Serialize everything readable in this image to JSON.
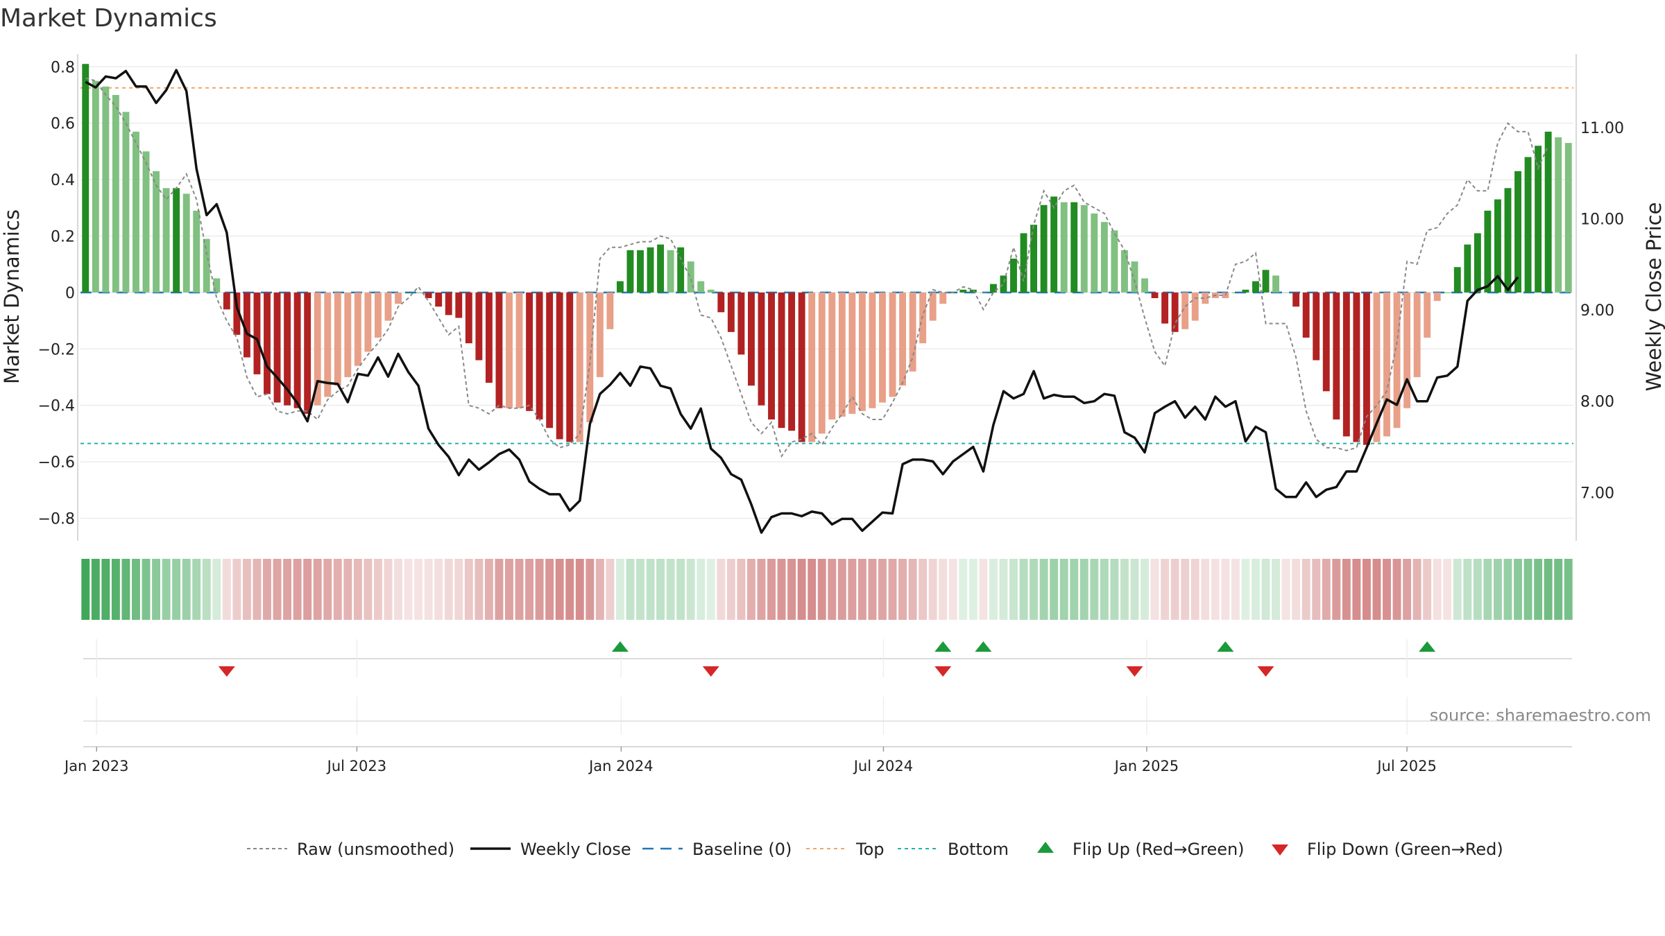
{
  "chart_data": {
    "type": "bar",
    "title": "Market Dynamics",
    "ylabel_left": "Market Dynamics",
    "ylabel_right": "Weekly Close Price",
    "source": "source: sharemaestro.com",
    "ylim_left": [
      -0.88,
      0.84
    ],
    "ylim_right": [
      6.47,
      11.79
    ],
    "yticks_left": [
      {
        "v": 0.8,
        "label": "0.8"
      },
      {
        "v": 0.6,
        "label": "0.6"
      },
      {
        "v": 0.4,
        "label": "0.4"
      },
      {
        "v": 0.2,
        "label": "0.2"
      },
      {
        "v": 0,
        "label": "0"
      },
      {
        "v": -0.2,
        "label": "−0.2"
      },
      {
        "v": -0.4,
        "label": "−0.4"
      },
      {
        "v": -0.6,
        "label": "−0.6"
      },
      {
        "v": -0.8,
        "label": "−0.8"
      }
    ],
    "yticks_right": [
      {
        "v": 11,
        "label": "11.00"
      },
      {
        "v": 10,
        "label": "10.00"
      },
      {
        "v": 9,
        "label": "9.00"
      },
      {
        "v": 8,
        "label": "8.00"
      },
      {
        "v": 7,
        "label": "7.00"
      }
    ],
    "xticks": [
      {
        "week": 1.6,
        "label": "Jan 2023"
      },
      {
        "week": 27.4,
        "label": "Jul 2023"
      },
      {
        "week": 53.6,
        "label": "Jan 2024"
      },
      {
        "week": 79.6,
        "label": "Jul 2024"
      },
      {
        "week": 105.7,
        "label": "Jan 2025"
      },
      {
        "week": 131.5,
        "label": "Jul 2025"
      }
    ],
    "top_level": 0.725,
    "bottom_level": -0.535,
    "baseline": 0,
    "histogram": [
      0.81,
      0.75,
      0.73,
      0.7,
      0.64,
      0.57,
      0.5,
      0.43,
      0.37,
      0.37,
      0.35,
      0.29,
      0.19,
      0.05,
      -0.06,
      -0.15,
      -0.23,
      -0.29,
      -0.36,
      -0.39,
      -0.4,
      -0.41,
      -0.43,
      -0.4,
      -0.37,
      -0.33,
      -0.3,
      -0.26,
      -0.21,
      -0.16,
      -0.1,
      -0.04,
      0,
      0,
      -0.02,
      -0.05,
      -0.08,
      -0.09,
      -0.18,
      -0.24,
      -0.32,
      -0.41,
      -0.41,
      -0.41,
      -0.42,
      -0.45,
      -0.48,
      -0.52,
      -0.53,
      -0.53,
      -0.46,
      -0.3,
      -0.13,
      0.04,
      0.15,
      0.15,
      0.16,
      0.17,
      0.15,
      0.16,
      0.11,
      0.04,
      0.01,
      -0.07,
      -0.14,
      -0.22,
      -0.33,
      -0.4,
      -0.45,
      -0.48,
      -0.49,
      -0.53,
      -0.53,
      -0.5,
      -0.45,
      -0.44,
      -0.43,
      -0.42,
      -0.41,
      -0.39,
      -0.37,
      -0.33,
      -0.28,
      -0.18,
      -0.1,
      -0.04,
      0,
      0.01,
      0.01,
      0,
      0.03,
      0.06,
      0.12,
      0.21,
      0.24,
      0.31,
      0.34,
      0.32,
      0.32,
      0.31,
      0.28,
      0.25,
      0.22,
      0.15,
      0.11,
      0.05,
      -0.02,
      -0.11,
      -0.14,
      -0.13,
      -0.1,
      -0.04,
      -0.02,
      -0.02,
      0,
      0.01,
      0.04,
      0.08,
      0.06,
      0,
      -0.05,
      -0.16,
      -0.24,
      -0.35,
      -0.45,
      -0.51,
      -0.53,
      -0.54,
      -0.53,
      -0.51,
      -0.48,
      -0.41,
      -0.3,
      -0.16,
      -0.03,
      0,
      0.09,
      0.17,
      0.21,
      0.29,
      0.33,
      0.37,
      0.43,
      0.48,
      0.52,
      0.57,
      0.55,
      0.53
    ],
    "raw": [
      0.76,
      0.75,
      0.7,
      0.66,
      0.6,
      0.53,
      0.46,
      0.38,
      0.33,
      0.37,
      0.42,
      0.33,
      0.14,
      -0.02,
      -0.1,
      -0.16,
      -0.3,
      -0.37,
      -0.36,
      -0.42,
      -0.43,
      -0.42,
      -0.42,
      -0.45,
      -0.38,
      -0.35,
      -0.33,
      -0.27,
      -0.22,
      -0.18,
      -0.13,
      -0.05,
      -0.02,
      0.02,
      -0.03,
      -0.09,
      -0.15,
      -0.12,
      -0.4,
      -0.41,
      -0.43,
      -0.4,
      -0.41,
      -0.41,
      -0.4,
      -0.45,
      -0.52,
      -0.55,
      -0.54,
      -0.5,
      -0.25,
      0.12,
      0.16,
      0.16,
      0.17,
      0.18,
      0.18,
      0.2,
      0.19,
      0.12,
      0.05,
      -0.08,
      -0.09,
      -0.16,
      -0.26,
      -0.36,
      -0.46,
      -0.5,
      -0.46,
      -0.58,
      -0.53,
      -0.52,
      -0.5,
      -0.54,
      -0.48,
      -0.43,
      -0.37,
      -0.43,
      -0.45,
      -0.45,
      -0.39,
      -0.32,
      -0.23,
      -0.08,
      0.01,
      0,
      0,
      0.02,
      0.01,
      -0.06,
      0,
      0.03,
      0.16,
      0.04,
      0.24,
      0.36,
      0.3,
      0.36,
      0.38,
      0.32,
      0.3,
      0.28,
      0.21,
      0.15,
      0.04,
      -0.09,
      -0.21,
      -0.26,
      -0.11,
      -0.05,
      -0.02,
      -0.02,
      -0.01,
      -0.01,
      0.1,
      0.11,
      0.14,
      -0.11,
      -0.11,
      -0.11,
      -0.23,
      -0.42,
      -0.52,
      -0.55,
      -0.55,
      -0.56,
      -0.55,
      -0.44,
      -0.4,
      -0.35,
      -0.18,
      0.11,
      0.1,
      0.22,
      0.23,
      0.28,
      0.31,
      0.4,
      0.36,
      0.36,
      0.53,
      0.6,
      0.57,
      0.57,
      0.44,
      0.52
    ],
    "close": [
      11.5,
      11.44,
      11.56,
      11.54,
      11.62,
      11.45,
      11.45,
      11.27,
      11.41,
      11.63,
      11.4,
      10.55,
      10.04,
      10.16,
      9.85,
      9.03,
      8.74,
      8.68,
      8.38,
      8.26,
      8.13,
      7.98,
      7.78,
      8.22,
      8.2,
      8.19,
      7.99,
      8.3,
      8.28,
      8.48,
      8.27,
      8.52,
      8.32,
      8.17,
      7.7,
      7.52,
      7.39,
      7.19,
      7.36,
      7.25,
      7.33,
      7.42,
      7.47,
      7.36,
      7.12,
      7.04,
      6.98,
      6.98,
      6.8,
      6.91,
      7.75,
      8.08,
      8.18,
      8.31,
      8.17,
      8.38,
      8.36,
      8.17,
      8.14,
      7.86,
      7.7,
      7.92,
      7.48,
      7.38,
      7.2,
      7.14,
      6.87,
      6.56,
      6.73,
      6.77,
      6.77,
      6.74,
      6.79,
      6.77,
      6.65,
      6.71,
      6.71,
      6.58,
      6.68,
      6.78,
      6.77,
      7.31,
      7.36,
      7.36,
      7.34,
      7.2,
      7.34,
      7.42,
      7.5,
      7.23,
      7.74,
      8.11,
      8.03,
      8.08,
      8.33,
      8.03,
      8.07,
      8.05,
      8.05,
      7.98,
      8.0,
      8.08,
      8.06,
      7.66,
      7.6,
      7.44,
      7.87,
      7.94,
      8.0,
      7.82,
      7.94,
      7.8,
      8.05,
      7.94,
      8.0,
      7.56,
      7.72,
      7.66,
      7.04,
      6.95,
      6.95,
      7.11,
      6.95,
      7.03,
      7.06,
      7.23,
      7.23,
      7.49,
      7.76,
      8.02,
      7.96,
      8.24,
      8.0,
      8.0,
      8.26,
      8.28,
      8.38,
      9.1,
      9.22,
      9.26,
      9.37,
      9.22,
      9.36
    ],
    "color_band": [
      0.81,
      0.75,
      0.73,
      0.7,
      0.64,
      0.57,
      0.5,
      0.43,
      0.37,
      0.37,
      0.35,
      0.29,
      0.19,
      0.05,
      -0.06,
      -0.15,
      -0.23,
      -0.29,
      -0.36,
      -0.39,
      -0.4,
      -0.41,
      -0.43,
      -0.4,
      -0.37,
      -0.33,
      -0.3,
      -0.26,
      -0.21,
      -0.16,
      -0.1,
      -0.04,
      -0.01,
      -0.01,
      -0.02,
      -0.05,
      -0.08,
      -0.09,
      -0.18,
      -0.24,
      -0.32,
      -0.41,
      -0.41,
      -0.41,
      -0.42,
      -0.45,
      -0.48,
      -0.52,
      -0.53,
      -0.53,
      -0.46,
      -0.3,
      -0.13,
      0.04,
      0.15,
      0.15,
      0.16,
      0.17,
      0.15,
      0.16,
      0.11,
      0.04,
      0.01,
      -0.07,
      -0.14,
      -0.22,
      -0.33,
      -0.4,
      -0.45,
      -0.48,
      -0.49,
      -0.53,
      -0.53,
      -0.5,
      -0.45,
      -0.44,
      -0.43,
      -0.42,
      -0.41,
      -0.39,
      -0.37,
      -0.33,
      -0.28,
      -0.18,
      -0.1,
      -0.04,
      -0.01,
      0.01,
      0.01,
      -0.01,
      0.03,
      0.06,
      0.12,
      0.21,
      0.24,
      0.31,
      0.34,
      0.32,
      0.32,
      0.31,
      0.28,
      0.25,
      0.22,
      0.15,
      0.11,
      0.05,
      -0.02,
      -0.11,
      -0.14,
      -0.13,
      -0.1,
      -0.04,
      -0.02,
      -0.02,
      -0.01,
      0.01,
      0.04,
      0.08,
      0.06,
      -0.01,
      -0.05,
      -0.16,
      -0.24,
      -0.35,
      -0.45,
      -0.51,
      -0.53,
      -0.54,
      -0.53,
      -0.51,
      -0.48,
      -0.41,
      -0.3,
      -0.16,
      -0.03,
      -0.01,
      0.09,
      0.17,
      0.21,
      0.29,
      0.33,
      0.37,
      0.43,
      0.48,
      0.52,
      0.57,
      0.55,
      0.53
    ],
    "flips_up": [
      53,
      85,
      89,
      113,
      133
    ],
    "flips_down": [
      14,
      62,
      85,
      104,
      117
    ],
    "colors": {
      "strong_green": "#228b22",
      "light_green": "#80c080",
      "strong_red": "#b22222",
      "light_red": "#e8a088",
      "close_line": "#111111",
      "raw_line": "#888888",
      "baseline": "#1f77b4",
      "top": "#f4a460",
      "bottom": "#20b2aa",
      "flip_up": "#1a9a3a",
      "flip_down": "#d62728"
    },
    "legend": [
      {
        "key": "raw",
        "label": "Raw (unsmoothed)"
      },
      {
        "key": "close",
        "label": "Weekly Close"
      },
      {
        "key": "baseline",
        "label": "Baseline (0)"
      },
      {
        "key": "top",
        "label": "Top"
      },
      {
        "key": "bottom",
        "label": "Bottom"
      },
      {
        "key": "flip_up",
        "label": "Flip Up (Red→Green)"
      },
      {
        "key": "flip_down",
        "label": "Flip Down (Green→Red)"
      }
    ]
  }
}
